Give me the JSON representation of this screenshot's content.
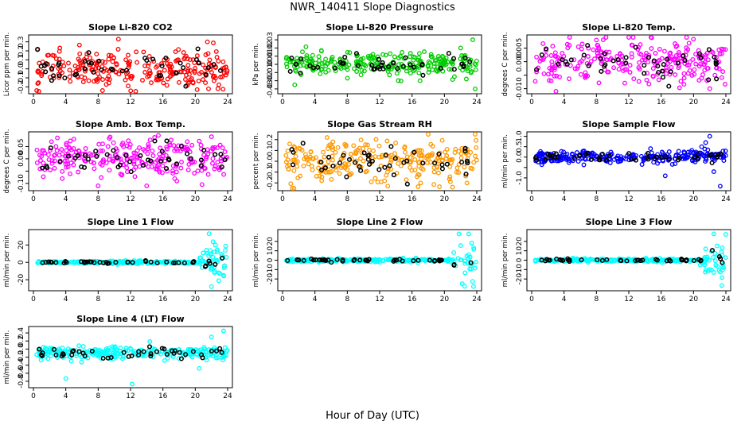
{
  "figure": {
    "title": "NWR_140411  Slope Diagnostics",
    "xlabel": "Hour of Day (UTC)"
  },
  "chart_data": [
    {
      "type": "scatter",
      "title": "Slope Li-820 CO2",
      "ylabel": "Licor ppm per min.",
      "xlim": [
        0,
        24
      ],
      "ylim": [
        -0.25,
        0.35
      ],
      "xticks": [
        0,
        4,
        8,
        12,
        16,
        20,
        24
      ],
      "yticks": [
        -0.2,
        -0.1,
        0.0,
        0.1,
        0.2,
        0.3
      ],
      "ytick_labels": [
        "-0.2",
        "-0.1",
        "0.0",
        "0.1",
        "0.2",
        "0.3"
      ],
      "color": "#ff0000",
      "spread": 0.1,
      "outliers": [
        [
          10.5,
          0.33
        ],
        [
          21.5,
          0.3
        ],
        [
          0.4,
          -0.24
        ],
        [
          22.8,
          -0.22
        ]
      ]
    },
    {
      "type": "scatter",
      "title": "Slope Li-820 Pressure",
      "ylabel": "kPa per min.",
      "xlim": [
        0,
        24
      ],
      "ylim": [
        -0.033,
        0.033
      ],
      "xticks": [
        0,
        4,
        8,
        12,
        16,
        20,
        24
      ],
      "yticks": [
        -0.03,
        -0.02,
        -0.01,
        0.0,
        0.01,
        0.02,
        0.03
      ],
      "ytick_labels": [
        "-0.03",
        "-0.02",
        "-0.01",
        "0.00",
        "0.01",
        "0.02",
        "0.03"
      ],
      "color": "#00cc00",
      "spread": 0.007,
      "outliers": [
        [
          1.5,
          -0.025
        ],
        [
          23.5,
          0.03
        ],
        [
          23.8,
          -0.03
        ],
        [
          17,
          -0.02
        ],
        [
          22,
          0.02
        ]
      ]
    },
    {
      "type": "scatter",
      "title": "Slope Li-820 Temp.",
      "ylabel": "degrees C per min.",
      "xlim": [
        0,
        24
      ],
      "ylim": [
        -0.011,
        0.009
      ],
      "xticks": [
        0,
        4,
        8,
        12,
        16,
        20,
        24
      ],
      "yticks": [
        -0.01,
        -0.005,
        0.0,
        0.005
      ],
      "ytick_labels": [
        "-0.010",
        "",
        "0.000",
        "0.005"
      ],
      "color": "#ff00ff",
      "spread": 0.004,
      "outliers": [
        [
          12,
          0.009
        ],
        [
          3,
          -0.011
        ],
        [
          22,
          -0.01
        ],
        [
          8,
          0.008
        ]
      ]
    },
    {
      "type": "scatter",
      "title": "Slope Amb. Box Temp.",
      "ylabel": "degrees C per min.",
      "xlim": [
        0,
        24
      ],
      "ylim": [
        -0.12,
        0.1
      ],
      "xticks": [
        0,
        4,
        8,
        12,
        16,
        20,
        24
      ],
      "yticks": [
        -0.1,
        -0.05,
        0.0,
        0.05
      ],
      "ytick_labels": [
        "-0.10",
        "",
        "0.00",
        "0.05"
      ],
      "color": "#ff00ff",
      "spread": 0.04,
      "outliers": [
        [
          5,
          0.08
        ],
        [
          14,
          -0.11
        ],
        [
          22,
          0.09
        ],
        [
          8,
          -0.11
        ]
      ]
    },
    {
      "type": "scatter",
      "title": "Slope Gas Stream RH",
      "ylabel": "percent per min.",
      "xlim": [
        0,
        24
      ],
      "ylim": [
        -0.25,
        0.25
      ],
      "xticks": [
        0,
        4,
        8,
        12,
        16,
        20,
        24
      ],
      "yticks": [
        -0.2,
        -0.1,
        0.0,
        0.1,
        0.2
      ],
      "ytick_labels": [
        "-0.2",
        "-0.1",
        "0.0",
        "0.1",
        "0.2"
      ],
      "color": "#ff9900",
      "spread": 0.09,
      "outliers": [
        [
          5.5,
          0.22
        ],
        [
          18,
          0.25
        ],
        [
          23.8,
          0.25
        ],
        [
          13,
          -0.23
        ],
        [
          21,
          -0.24
        ]
      ]
    },
    {
      "type": "scatter",
      "title": "Slope Sample Flow",
      "ylabel": "ml/min per min.",
      "xlim": [
        0,
        24
      ],
      "ylim": [
        -1.5,
        1.1
      ],
      "xticks": [
        0,
        4,
        8,
        12,
        16,
        20,
        24
      ],
      "yticks": [
        -1.0,
        -0.5,
        0.0,
        0.5,
        1.0
      ],
      "ytick_labels": [
        "-1.0",
        "",
        "0.0",
        "0.5",
        "1.0"
      ],
      "color": "#0000ff",
      "spread": 0.15,
      "outliers": [
        [
          22,
          1.0
        ],
        [
          21.5,
          0.7
        ],
        [
          23.3,
          -1.4
        ],
        [
          16.5,
          -0.9
        ],
        [
          22.5,
          -0.7
        ],
        [
          21,
          0.5
        ]
      ]
    },
    {
      "type": "scatter",
      "title": "Slope Line 1 Flow",
      "ylabel": "ml/min per min.",
      "xlim": [
        0,
        24
      ],
      "ylim": [
        -30,
        35
      ],
      "xticks": [
        0,
        4,
        8,
        12,
        16,
        20,
        24
      ],
      "yticks": [
        -20,
        0,
        20
      ],
      "ytick_labels": [
        "-20",
        "0",
        "20"
      ],
      "color": "#00ffff",
      "spread": 0.8,
      "late_spread": 12,
      "outliers": [
        [
          21.7,
          33
        ],
        [
          22,
          -28
        ],
        [
          23.5,
          -15
        ],
        [
          22.5,
          20
        ]
      ]
    },
    {
      "type": "scatter",
      "title": "Slope Line 2 Flow",
      "ylabel": "ml/min per min.",
      "xlim": [
        0,
        24
      ],
      "ylim": [
        -30,
        30
      ],
      "xticks": [
        0,
        4,
        8,
        12,
        16,
        20,
        24
      ],
      "yticks": [
        -20,
        -10,
        0,
        10,
        20
      ],
      "ytick_labels": [
        "-20",
        "-10",
        "0",
        "10",
        "20"
      ],
      "color": "#00ffff",
      "spread": 0.8,
      "late_spread": 12,
      "outliers": [
        [
          21.8,
          28
        ],
        [
          22.2,
          -25
        ],
        [
          23.6,
          -28
        ],
        [
          23,
          28
        ]
      ]
    },
    {
      "type": "scatter",
      "title": "Slope Line 3 Flow",
      "ylabel": "ml/min per min.",
      "xlim": [
        0,
        24
      ],
      "ylim": [
        -30,
        30
      ],
      "xticks": [
        0,
        4,
        8,
        12,
        16,
        20,
        24
      ],
      "yticks": [
        -20,
        -10,
        0,
        10,
        20
      ],
      "ytick_labels": [
        "-20",
        "-10",
        "0",
        "10",
        "20"
      ],
      "color": "#00ffff",
      "spread": 0.8,
      "late_spread": 10,
      "outliers": [
        [
          22.5,
          28
        ],
        [
          23.5,
          -27
        ],
        [
          22,
          -10
        ],
        [
          21.5,
          12
        ]
      ]
    },
    {
      "type": "scatter",
      "title": "Slope Line 4 (LT) Flow",
      "ylabel": "ml/min per min.",
      "xlim": [
        0,
        24
      ],
      "ylim": [
        -0.9,
        0.5
      ],
      "xticks": [
        0,
        4,
        8,
        12,
        16,
        20,
        24
      ],
      "yticks": [
        -0.8,
        -0.6,
        -0.4,
        -0.2,
        0.0,
        0.2,
        0.4
      ],
      "ytick_labels": [
        "-0.8",
        "-0.6",
        "-0.4",
        "-0.2",
        "0.0",
        "0.2",
        "0.4"
      ],
      "color": "#00ffff",
      "spread": 0.08,
      "center": -0.1,
      "outliers": [
        [
          4,
          -0.73
        ],
        [
          12.2,
          -0.87
        ],
        [
          23.5,
          0.45
        ],
        [
          22,
          0.3
        ],
        [
          20.5,
          -0.48
        ]
      ]
    }
  ]
}
